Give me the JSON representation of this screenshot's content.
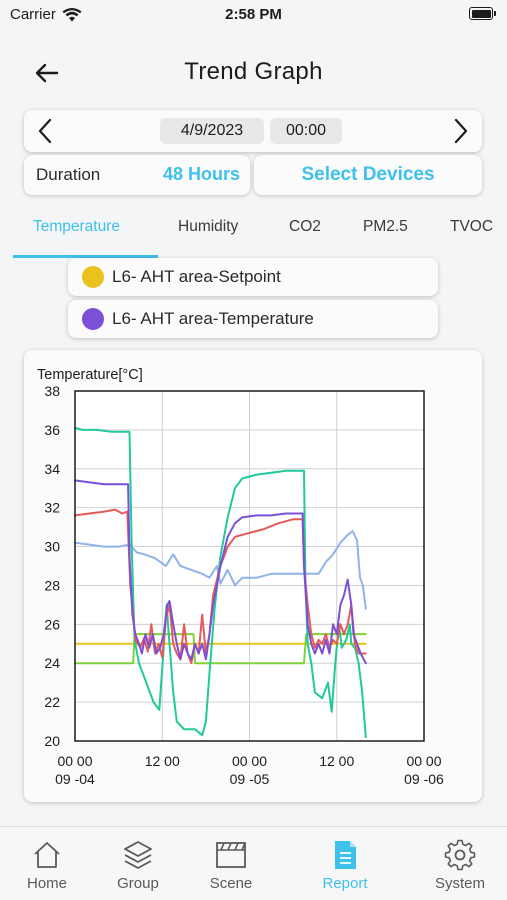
{
  "status_bar": {
    "carrier": "Carrier",
    "time": "2:58 PM"
  },
  "header": {
    "title": "Trend Graph",
    "back_icon": "arrow-left-icon"
  },
  "date_bar": {
    "date": "4/9/2023",
    "time": "00:00"
  },
  "duration": {
    "label": "Duration",
    "value": "48 Hours"
  },
  "select_devices_label": "Select Devices",
  "tabs": [
    {
      "label": "Temperature",
      "active": true
    },
    {
      "label": "Humidity",
      "active": false
    },
    {
      "label": "CO2",
      "active": false
    },
    {
      "label": "PM2.5",
      "active": false
    },
    {
      "label": "TVOC",
      "active": false
    }
  ],
  "legend": [
    {
      "label": "L6- AHT area-Setpoint",
      "color": "#e9c21d"
    },
    {
      "label": "L6- AHT area-Temperature",
      "color": "#7b4fd6"
    }
  ],
  "accent_color": "#3ec1ea",
  "chart_data": {
    "type": "line",
    "ylabel": "Temperature[°C]",
    "ylim": [
      20,
      38
    ],
    "yticks": [
      20,
      22,
      24,
      26,
      28,
      30,
      32,
      34,
      36,
      38
    ],
    "xlim": [
      0,
      48
    ],
    "xticks": [
      {
        "x": 0,
        "line1": "00 00",
        "line2": "09 -04"
      },
      {
        "x": 12,
        "line1": "12 00",
        "line2": ""
      },
      {
        "x": 24,
        "line1": "00 00",
        "line2": "09 -05"
      },
      {
        "x": 36,
        "line1": "12 00",
        "line2": ""
      },
      {
        "x": 48,
        "line1": "00 00",
        "line2": "09 -06"
      }
    ],
    "grid": true,
    "series": [
      {
        "color": "#8fb3ea",
        "points": [
          [
            0,
            30.2
          ],
          [
            2,
            30.1
          ],
          [
            4,
            30.0
          ],
          [
            6,
            30.0
          ],
          [
            7.5,
            30.1
          ],
          [
            8.5,
            29.7
          ],
          [
            9.5,
            29.6
          ],
          [
            11,
            29.4
          ],
          [
            12.5,
            29.0
          ],
          [
            13.5,
            29.6
          ],
          [
            14.5,
            29.0
          ],
          [
            16,
            28.8
          ],
          [
            17.5,
            28.6
          ],
          [
            18.5,
            28.4
          ],
          [
            19.5,
            29.0
          ],
          [
            20,
            28.1
          ],
          [
            21,
            28.8
          ],
          [
            22,
            28.0
          ],
          [
            23,
            28.4
          ],
          [
            25,
            28.4
          ],
          [
            27,
            28.6
          ],
          [
            29,
            28.6
          ],
          [
            31,
            28.6
          ],
          [
            32.5,
            28.6
          ],
          [
            33.5,
            28.6
          ],
          [
            34.5,
            29.2
          ],
          [
            35.5,
            29.6
          ],
          [
            36.5,
            30.2
          ],
          [
            37.5,
            30.6
          ],
          [
            38.2,
            30.8
          ],
          [
            38.8,
            30.3
          ],
          [
            39.2,
            28.4
          ],
          [
            39.6,
            28.0
          ],
          [
            40,
            26.8
          ]
        ]
      },
      {
        "color": "#e9c21d",
        "points": [
          [
            0,
            25.0
          ],
          [
            40,
            25.0
          ]
        ]
      },
      {
        "color": "#7fd23a",
        "points": [
          [
            0,
            24.0
          ],
          [
            8,
            24.0
          ],
          [
            8.2,
            25.5
          ],
          [
            16,
            25.5
          ],
          [
            16.3,
            25.5
          ],
          [
            16.5,
            24.0
          ],
          [
            31.5,
            24.0
          ],
          [
            31.8,
            25.5
          ],
          [
            40,
            25.5
          ]
        ]
      },
      {
        "color": "#20c999",
        "points": [
          [
            0,
            36.1
          ],
          [
            1,
            36.0
          ],
          [
            3,
            36.0
          ],
          [
            5,
            35.9
          ],
          [
            7.5,
            35.9
          ],
          [
            7.8,
            30.0
          ],
          [
            8.2,
            25.2
          ],
          [
            8.8,
            24.0
          ],
          [
            9.8,
            23.0
          ],
          [
            10.8,
            22.0
          ],
          [
            11.6,
            21.6
          ],
          [
            12.2,
            24.8
          ],
          [
            12.6,
            27.0
          ],
          [
            13.0,
            25.0
          ],
          [
            13.5,
            22.5
          ],
          [
            14.0,
            21.0
          ],
          [
            15.0,
            20.6
          ],
          [
            16.5,
            20.6
          ],
          [
            17.5,
            20.3
          ],
          [
            18.0,
            21.0
          ],
          [
            18.5,
            23.5
          ],
          [
            19.2,
            26.8
          ],
          [
            20,
            29.5
          ],
          [
            21,
            31.5
          ],
          [
            22,
            33.0
          ],
          [
            23,
            33.5
          ],
          [
            25,
            33.7
          ],
          [
            27,
            33.8
          ],
          [
            29,
            33.9
          ],
          [
            31.5,
            33.9
          ],
          [
            31.7,
            28.0
          ],
          [
            32.0,
            25.0
          ],
          [
            32.5,
            24.0
          ],
          [
            33.0,
            22.5
          ],
          [
            34.0,
            22.2
          ],
          [
            34.8,
            23.0
          ],
          [
            35.3,
            21.5
          ],
          [
            35.8,
            24.0
          ],
          [
            36.3,
            26.0
          ],
          [
            36.7,
            24.8
          ],
          [
            37.3,
            25.2
          ],
          [
            37.8,
            26.0
          ],
          [
            38.0,
            25.0
          ],
          [
            38.5,
            24.8
          ],
          [
            39,
            24.0
          ],
          [
            39.5,
            22.5
          ],
          [
            40,
            20.2
          ]
        ]
      },
      {
        "color": "#e55a5a",
        "points": [
          [
            0,
            31.6
          ],
          [
            2,
            31.7
          ],
          [
            4,
            31.8
          ],
          [
            5.5,
            31.9
          ],
          [
            6.5,
            31.7
          ],
          [
            7.2,
            31.8
          ],
          [
            7.6,
            28.0
          ],
          [
            8.0,
            26.5
          ],
          [
            8.3,
            25.2
          ],
          [
            9.0,
            24.8
          ],
          [
            9.5,
            25.3
          ],
          [
            10.0,
            24.6
          ],
          [
            10.5,
            26.0
          ],
          [
            11.0,
            24.5
          ],
          [
            11.5,
            25.0
          ],
          [
            12.0,
            24.3
          ],
          [
            12.5,
            26.3
          ],
          [
            13.0,
            27.0
          ],
          [
            13.5,
            25.0
          ],
          [
            14.0,
            24.5
          ],
          [
            14.5,
            24.2
          ],
          [
            15.0,
            26.0
          ],
          [
            15.5,
            24.5
          ],
          [
            16.0,
            24.0
          ],
          [
            16.5,
            25.0
          ],
          [
            17.0,
            24.5
          ],
          [
            17.5,
            26.5
          ],
          [
            18.0,
            24.5
          ],
          [
            18.5,
            25.5
          ],
          [
            19.0,
            27.5
          ],
          [
            20,
            29.0
          ],
          [
            21,
            30.0
          ],
          [
            22,
            30.5
          ],
          [
            24,
            30.7
          ],
          [
            26,
            30.9
          ],
          [
            28,
            31.2
          ],
          [
            30,
            31.4
          ],
          [
            31.3,
            31.4
          ],
          [
            31.5,
            29.0
          ],
          [
            32.0,
            27.0
          ],
          [
            32.5,
            25.5
          ],
          [
            33.0,
            24.8
          ],
          [
            33.5,
            25.2
          ],
          [
            34.0,
            25.0
          ],
          [
            34.5,
            25.5
          ],
          [
            35.0,
            24.8
          ],
          [
            35.5,
            25.2
          ],
          [
            36.0,
            25.0
          ],
          [
            36.5,
            26.0
          ],
          [
            37.0,
            25.5
          ],
          [
            37.5,
            26.0
          ],
          [
            38.0,
            27.0
          ],
          [
            38.5,
            25.0
          ],
          [
            39.0,
            24.5
          ],
          [
            40,
            24.5
          ]
        ]
      },
      {
        "color": "#7b4fd6",
        "points": [
          [
            0,
            33.4
          ],
          [
            2,
            33.3
          ],
          [
            4,
            33.2
          ],
          [
            6,
            33.2
          ],
          [
            7.3,
            33.2
          ],
          [
            7.5,
            29.5
          ],
          [
            7.9,
            26.5
          ],
          [
            8.3,
            25.5
          ],
          [
            8.8,
            25.0
          ],
          [
            9.2,
            24.5
          ],
          [
            9.7,
            25.5
          ],
          [
            10.2,
            24.8
          ],
          [
            10.7,
            25.5
          ],
          [
            11.2,
            24.5
          ],
          [
            11.7,
            24.8
          ],
          [
            12.2,
            25.5
          ],
          [
            12.7,
            27.0
          ],
          [
            13.0,
            27.2
          ],
          [
            13.5,
            26.0
          ],
          [
            14.0,
            25.0
          ],
          [
            14.5,
            24.2
          ],
          [
            15.0,
            25.0
          ],
          [
            15.5,
            24.5
          ],
          [
            16.0,
            24.2
          ],
          [
            16.5,
            25.0
          ],
          [
            17.0,
            24.5
          ],
          [
            17.5,
            25.0
          ],
          [
            18.0,
            24.2
          ],
          [
            18.5,
            25.5
          ],
          [
            19.0,
            27.0
          ],
          [
            19.5,
            28.0
          ],
          [
            20,
            29.0
          ],
          [
            21,
            30.5
          ],
          [
            22,
            31.2
          ],
          [
            23,
            31.5
          ],
          [
            25,
            31.6
          ],
          [
            27,
            31.6
          ],
          [
            29,
            31.7
          ],
          [
            31.3,
            31.7
          ],
          [
            31.5,
            29.0
          ],
          [
            32.0,
            26.0
          ],
          [
            32.5,
            25.0
          ],
          [
            33.0,
            24.5
          ],
          [
            33.5,
            25.0
          ],
          [
            34.0,
            24.5
          ],
          [
            34.5,
            25.2
          ],
          [
            35.0,
            24.5
          ],
          [
            35.5,
            26.0
          ],
          [
            36.0,
            25.5
          ],
          [
            36.5,
            27.0
          ],
          [
            37.0,
            27.5
          ],
          [
            37.5,
            28.3
          ],
          [
            38.0,
            27.0
          ],
          [
            38.3,
            25.5
          ],
          [
            38.8,
            25.0
          ],
          [
            39.3,
            24.5
          ],
          [
            40,
            24.0
          ]
        ]
      }
    ]
  },
  "bottom_nav": [
    {
      "label": "Home",
      "icon": "home-icon",
      "active": false
    },
    {
      "label": "Group",
      "icon": "layers-icon",
      "active": false
    },
    {
      "label": "Scene",
      "icon": "clapperboard-icon",
      "active": false
    },
    {
      "label": "Report",
      "icon": "report-icon",
      "active": true
    },
    {
      "label": "System",
      "icon": "gear-icon",
      "active": false
    }
  ]
}
